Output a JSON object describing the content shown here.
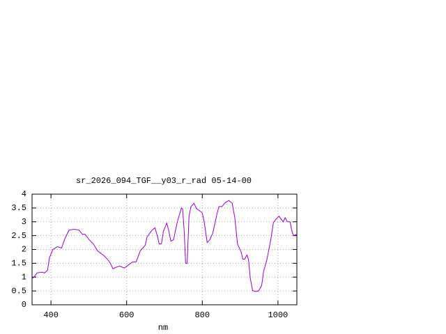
{
  "chart_data": {
    "type": "line",
    "title": "sr_2026_094_TGF__y03_r_rad 05-14-00",
    "x_label": "nm",
    "xlim": [
      350,
      1050
    ],
    "xticks": [
      400,
      600,
      800,
      1000
    ],
    "ylim": [
      0,
      4
    ],
    "yticks": [
      0,
      0.5,
      1,
      1.5,
      2,
      2.5,
      3,
      3.5,
      4
    ],
    "grid": true,
    "series": [
      {
        "name": "",
        "color": "#9400d3",
        "x": [
          350,
          355,
          363,
          376,
          383,
          391,
          396,
          405,
          417,
          428,
          437,
          448,
          461,
          474,
          483,
          490,
          501,
          512,
          523,
          538,
          549,
          557,
          564,
          571,
          581,
          594,
          603,
          616,
          625,
          636,
          649,
          654,
          667,
          675,
          682,
          686,
          692,
          697,
          706,
          711,
          717,
          724,
          734,
          745,
          748,
          752,
          756,
          760,
          765,
          770,
          778,
          785,
          793,
          800,
          805,
          813,
          820,
          828,
          839,
          844,
          852,
          861,
          870,
          879,
          886,
          893,
          903,
          907,
          912,
          918,
          922,
          927,
          933,
          940,
          949,
          957,
          962,
          971,
          981,
          988,
          995,
          1003,
          1008,
          1014,
          1019,
          1025,
          1032,
          1038,
          1042,
          1050
        ],
        "values": [
          0.95,
          1.0,
          1.15,
          1.18,
          1.15,
          1.25,
          1.7,
          2.0,
          2.1,
          2.05,
          2.4,
          2.7,
          2.73,
          2.7,
          2.55,
          2.55,
          2.35,
          2.2,
          1.95,
          1.8,
          1.65,
          1.5,
          1.3,
          1.35,
          1.4,
          1.33,
          1.42,
          1.55,
          1.55,
          1.95,
          2.15,
          2.45,
          2.7,
          2.78,
          2.45,
          2.2,
          2.2,
          2.65,
          2.95,
          2.7,
          2.3,
          2.35,
          3.0,
          3.5,
          3.45,
          2.7,
          1.5,
          1.5,
          3.2,
          3.55,
          3.67,
          3.47,
          3.4,
          3.32,
          3.0,
          2.25,
          2.35,
          2.6,
          3.3,
          3.55,
          3.55,
          3.7,
          3.77,
          3.67,
          3.15,
          2.2,
          1.9,
          1.65,
          1.65,
          1.8,
          1.65,
          0.95,
          0.52,
          0.48,
          0.5,
          0.7,
          1.2,
          1.65,
          2.35,
          2.97,
          3.1,
          3.2,
          3.1,
          3.0,
          3.15,
          3.0,
          3.0,
          2.6,
          2.5,
          2.55
        ]
      }
    ]
  }
}
